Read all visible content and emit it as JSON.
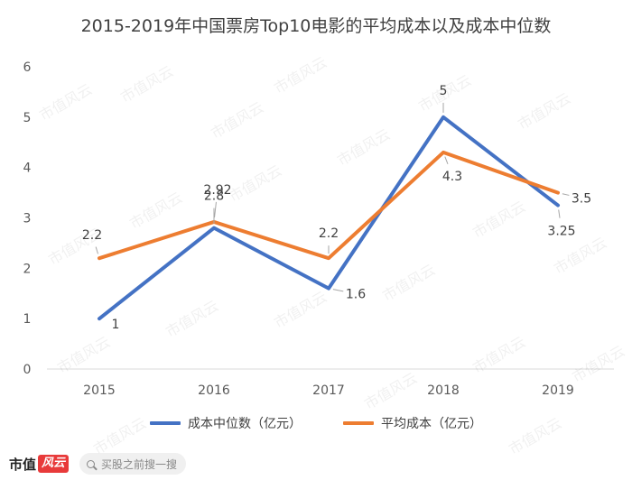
{
  "chart_data": {
    "type": "line",
    "title": "2015-2019年中国票房Top10电影的平均成本以及成本中位数",
    "categories": [
      "2015",
      "2016",
      "2017",
      "2018",
      "2019"
    ],
    "ylim": [
      0,
      6
    ],
    "yticks": [
      0,
      1,
      2,
      3,
      4,
      5,
      6
    ],
    "grid": false,
    "legend_position": "bottom",
    "series": [
      {
        "name": "成本中位数（亿元）",
        "color": "#4472c4",
        "values": [
          1,
          2.8,
          1.6,
          5,
          3.25
        ],
        "labels": [
          "1",
          "2.8",
          "1.6",
          "5",
          "3.25"
        ]
      },
      {
        "name": "平均成本（亿元）",
        "color": "#ed7d31",
        "values": [
          2.2,
          2.92,
          2.2,
          4.3,
          3.5
        ],
        "labels": [
          "2.2",
          "2.92",
          "2.2",
          "4.3",
          "3.5"
        ]
      }
    ]
  },
  "footer": {
    "logo_text": "市值",
    "logo_mark": "风云",
    "search_placeholder": "买股之前搜一搜"
  },
  "watermark_text": "市值风云"
}
